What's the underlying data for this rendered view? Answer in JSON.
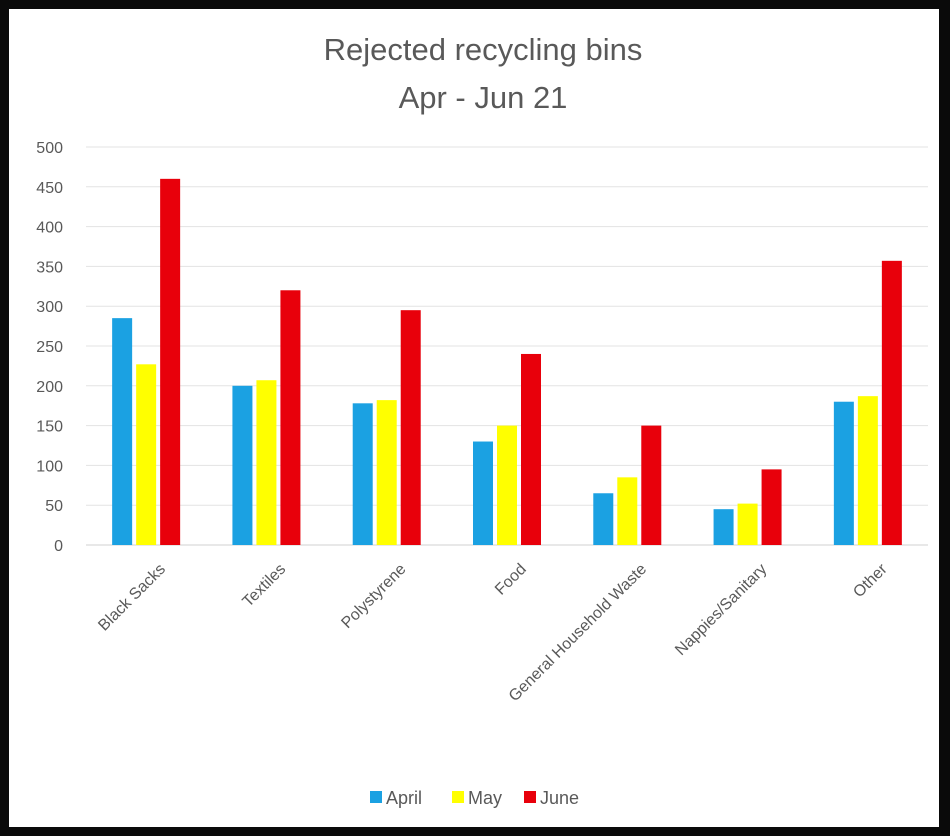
{
  "chart_data": {
    "type": "bar",
    "title": "Rejected recycling bins",
    "subtitle": "Apr - Jun 21",
    "xlabel": "",
    "ylabel": "",
    "ylim": [
      0,
      500
    ],
    "yticks": [
      "0",
      "50",
      "100",
      "150",
      "200",
      "250",
      "300",
      "350",
      "400",
      "450",
      "500"
    ],
    "grid": true,
    "legend_position": "bottom",
    "categories": [
      "Black Sacks",
      "Textiles",
      "Polystyrene",
      "Food",
      "General Household Waste",
      "Nappies/Sanitary",
      "Other"
    ],
    "series": [
      {
        "name": "April",
        "color": "#1ba1e2",
        "values": [
          285,
          200,
          178,
          130,
          65,
          45,
          180
        ]
      },
      {
        "name": "May",
        "color": "#ffff00",
        "values": [
          227,
          207,
          182,
          150,
          85,
          52,
          187
        ]
      },
      {
        "name": "June",
        "color": "#e8000b",
        "values": [
          460,
          320,
          295,
          240,
          150,
          95,
          357
        ]
      }
    ]
  }
}
